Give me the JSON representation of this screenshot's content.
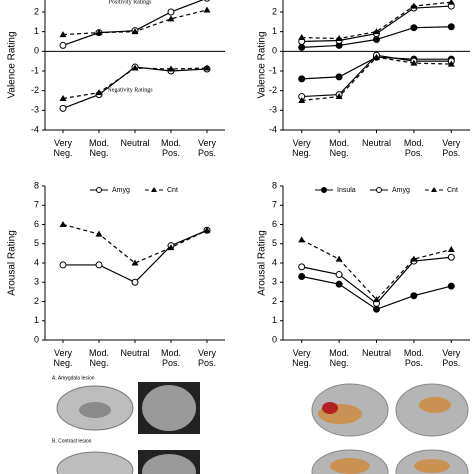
{
  "chart_data": [
    {
      "type": "line",
      "y_label": "Valence Rating",
      "categories": [
        "Very Neg.",
        "Mod. Neg.",
        "Neutral",
        "Mod. Pos.",
        "Very Pos."
      ],
      "ylim": [
        -4,
        3
      ],
      "yticks": [
        -4,
        -3,
        -2,
        -1,
        0,
        1,
        2
      ],
      "annotations": [
        "Positivity Ratings",
        "Negativity Ratings"
      ],
      "series": [
        {
          "color": "#000000",
          "marker": "circle-open",
          "dash": false,
          "values": [
            0.3,
            0.95,
            1.05,
            2.0,
            2.7
          ]
        },
        {
          "color": "#000000",
          "marker": "triangle",
          "dash": true,
          "values": [
            0.85,
            0.95,
            1.0,
            1.65,
            2.1
          ]
        },
        {
          "color": "#000000",
          "marker": "circle-open",
          "dash": false,
          "values": [
            -2.9,
            -2.2,
            -0.8,
            -1.0,
            -0.9
          ]
        },
        {
          "color": "#000000",
          "marker": "triangle",
          "dash": true,
          "values": [
            -2.4,
            -2.1,
            -0.85,
            -0.9,
            -0.85
          ]
        }
      ]
    },
    {
      "type": "line",
      "y_label": "Valence Rating",
      "categories": [
        "Very Neg.",
        "Mod. Neg.",
        "Neutral",
        "Mod. Pos.",
        "Very Pos."
      ],
      "ylim": [
        -4,
        3
      ],
      "yticks": [
        -4,
        -3,
        -2,
        -1,
        0,
        1,
        2
      ],
      "series": [
        {
          "color": "#000000",
          "marker": "circle-filled",
          "dash": false,
          "values": [
            0.2,
            0.3,
            0.6,
            1.2,
            1.25
          ]
        },
        {
          "color": "#000000",
          "marker": "circle-open",
          "dash": false,
          "values": [
            0.5,
            0.55,
            0.9,
            2.2,
            2.3
          ]
        },
        {
          "color": "#000000",
          "marker": "triangle",
          "dash": true,
          "values": [
            0.7,
            0.65,
            1.0,
            2.3,
            2.5
          ]
        },
        {
          "color": "#000000",
          "marker": "circle-filled",
          "dash": false,
          "values": [
            -1.4,
            -1.3,
            -0.3,
            -0.4,
            -0.4
          ]
        },
        {
          "color": "#000000",
          "marker": "circle-open",
          "dash": false,
          "values": [
            -2.3,
            -2.2,
            -0.2,
            -0.5,
            -0.5
          ]
        },
        {
          "color": "#000000",
          "marker": "triangle",
          "dash": true,
          "values": [
            -2.5,
            -2.3,
            -0.3,
            -0.6,
            -0.65
          ]
        }
      ]
    },
    {
      "type": "line",
      "y_label": "Arousal Rating",
      "categories": [
        "Very Neg.",
        "Mod. Neg.",
        "Neutral",
        "Mod. Pos.",
        "Very Pos."
      ],
      "ylim": [
        0,
        8
      ],
      "yticks": [
        0,
        1,
        2,
        3,
        4,
        5,
        6,
        7,
        8
      ],
      "series": [
        {
          "name": "Amyg",
          "color": "#000000",
          "marker": "circle-open",
          "dash": false,
          "values": [
            3.9,
            3.9,
            3.0,
            4.9,
            5.7
          ]
        },
        {
          "name": "Cnt",
          "color": "#000000",
          "marker": "triangle",
          "dash": true,
          "values": [
            6.0,
            5.5,
            4.0,
            4.8,
            5.7
          ]
        }
      ]
    },
    {
      "type": "line",
      "y_label": "Arousal Rating",
      "categories": [
        "Very Neg.",
        "Mod. Neg.",
        "Neutral",
        "Mod. Pos.",
        "Very Pos."
      ],
      "ylim": [
        0,
        8
      ],
      "yticks": [
        0,
        1,
        2,
        3,
        4,
        5,
        6,
        7,
        8
      ],
      "series": [
        {
          "name": "Insula",
          "color": "#000000",
          "marker": "circle-filled",
          "dash": false,
          "values": [
            3.3,
            2.9,
            1.6,
            2.3,
            2.8
          ]
        },
        {
          "name": "Amyg",
          "color": "#000000",
          "marker": "circle-open",
          "dash": false,
          "values": [
            3.8,
            3.4,
            1.9,
            4.1,
            4.3
          ]
        },
        {
          "name": "Cnt",
          "color": "#000000",
          "marker": "triangle",
          "dash": true,
          "values": [
            5.2,
            4.2,
            2.1,
            4.2,
            4.7
          ]
        }
      ]
    }
  ],
  "images": {
    "labels": [
      "A. Amygdala lesion",
      "B. Contrast lesion"
    ]
  }
}
